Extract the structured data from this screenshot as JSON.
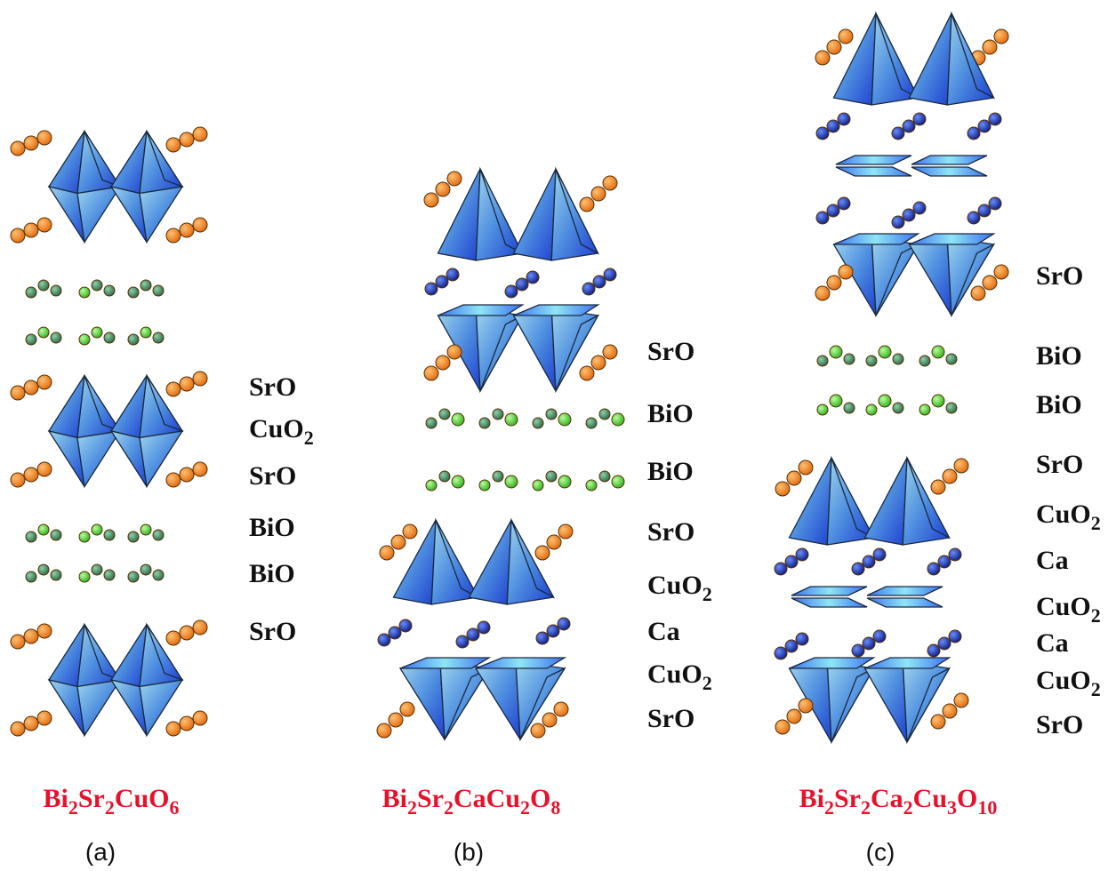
{
  "panels": [
    {
      "label": "(a)",
      "formula": [
        "Bi",
        "2",
        "Sr",
        "2",
        "CuO",
        "6"
      ],
      "layers": [
        [
          "SrO"
        ],
        [
          "CuO",
          "2"
        ],
        [
          "SrO"
        ],
        [
          "BiO"
        ],
        [
          "BiO"
        ],
        [
          "SrO"
        ]
      ]
    },
    {
      "label": "(b)",
      "formula": [
        "Bi",
        "2",
        "Sr",
        "2",
        "CaCu",
        "2",
        "O",
        "8"
      ],
      "layers": [
        [
          "SrO"
        ],
        [
          "BiO"
        ],
        [
          "BiO"
        ],
        [
          "SrO"
        ],
        [
          "CuO",
          "2"
        ],
        [
          "Ca"
        ],
        [
          "CuO",
          "2"
        ],
        [
          "SrO"
        ]
      ]
    },
    {
      "label": "(c)",
      "formula": [
        "Bi",
        "2",
        "Sr",
        "2",
        "Ca",
        "2",
        "Cu",
        "3",
        "O",
        "10"
      ],
      "layers": [
        [
          "SrO"
        ],
        [
          "BiO"
        ],
        [
          "BiO"
        ],
        [
          "SrO"
        ],
        [
          "CuO",
          "2"
        ],
        [
          "Ca"
        ],
        [
          "CuO",
          "2"
        ],
        [
          "Ca"
        ],
        [
          "CuO",
          "2"
        ],
        [
          "SrO"
        ]
      ]
    }
  ]
}
